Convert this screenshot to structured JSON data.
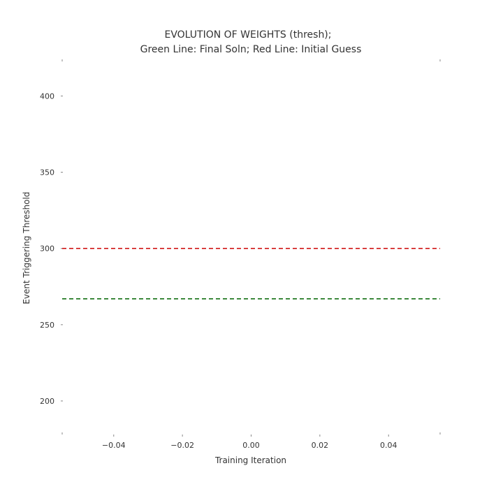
{
  "chart_data": {
    "type": "line",
    "title": "EVOLUTION OF WEIGHTS (thresh);",
    "subtitle": "Green Line: Final Soln; Red Line: Initial Guess",
    "xlabel": "Training Iteration",
    "ylabel": "Event Triggering Threshold",
    "xlim": [
      -0.055,
      0.055
    ],
    "ylim": [
      178,
      424
    ],
    "x_ticks": [
      {
        "value": -0.04,
        "label": "−0.04"
      },
      {
        "value": -0.02,
        "label": "−0.02"
      },
      {
        "value": 0.0,
        "label": "0.00"
      },
      {
        "value": 0.02,
        "label": "0.02"
      },
      {
        "value": 0.04,
        "label": "0.04"
      }
    ],
    "y_ticks": [
      {
        "value": 200,
        "label": "200"
      },
      {
        "value": 250,
        "label": "250"
      },
      {
        "value": 300,
        "label": "300"
      },
      {
        "value": 350,
        "label": "350"
      },
      {
        "value": 400,
        "label": "400"
      }
    ],
    "series": [
      {
        "name": "Initial Guess",
        "x": [
          -0.055,
          0.055
        ],
        "y": [
          300,
          300
        ],
        "color": "#cc0000",
        "style": "dashed"
      },
      {
        "name": "Final Soln",
        "x": [
          -0.055,
          0.055
        ],
        "y": [
          267,
          267
        ],
        "color": "#006400",
        "style": "dashed"
      }
    ],
    "grid": false,
    "legend": "none"
  }
}
